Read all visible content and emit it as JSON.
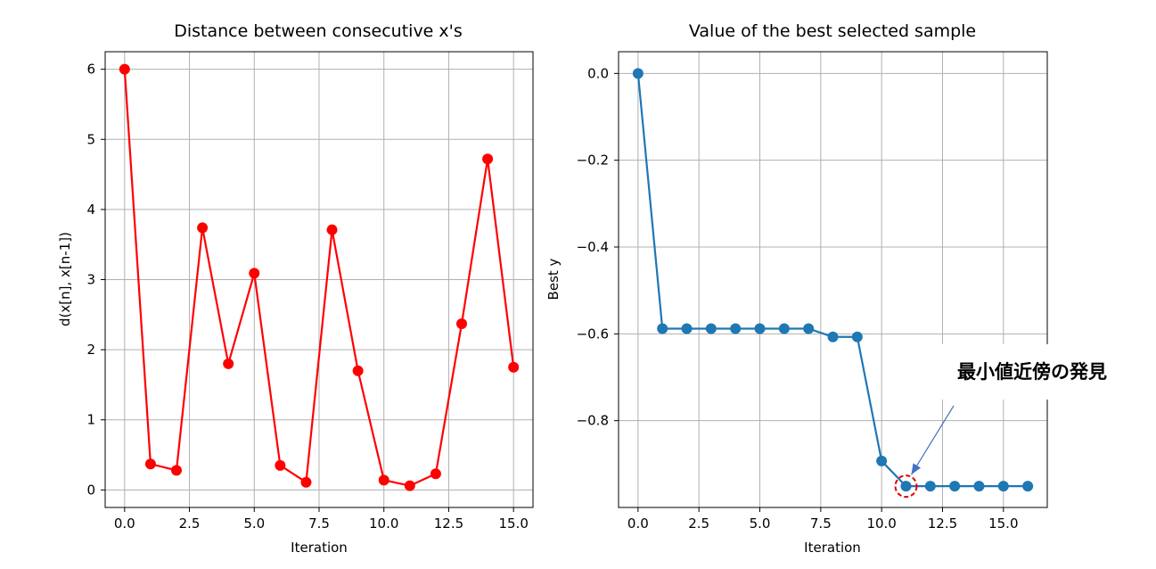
{
  "chart_data": [
    {
      "type": "line",
      "title": "Distance between consecutive x's",
      "xlabel": "Iteration",
      "ylabel": "d(x[n], x[n-1])",
      "xlim": [
        -0.75,
        15.75
      ],
      "ylim": [
        -0.25,
        6.25
      ],
      "xticks": [
        0.0,
        2.5,
        5.0,
        7.5,
        10.0,
        12.5,
        15.0
      ],
      "xtick_labels": [
        "0.0",
        "2.5",
        "5.0",
        "7.5",
        "10.0",
        "12.5",
        "15.0"
      ],
      "yticks": [
        0,
        1,
        2,
        3,
        4,
        5,
        6
      ],
      "ytick_labels": [
        "0",
        "1",
        "2",
        "3",
        "4",
        "5",
        "6"
      ],
      "grid": true,
      "color": "#ff0000",
      "x": [
        0,
        1,
        2,
        3,
        4,
        5,
        6,
        7,
        8,
        9,
        10,
        11,
        12,
        13,
        14,
        15
      ],
      "y": [
        6.0,
        0.37,
        0.28,
        3.74,
        1.8,
        3.09,
        0.35,
        0.11,
        3.71,
        1.7,
        0.14,
        0.06,
        0.23,
        2.37,
        4.72,
        1.75
      ]
    },
    {
      "type": "line",
      "title": "Value of the best selected sample",
      "xlabel": "Iteration",
      "ylabel": "Best y",
      "xlim": [
        -0.8,
        16.8
      ],
      "ylim": [
        -1.0,
        0.05
      ],
      "xticks": [
        0.0,
        2.5,
        5.0,
        7.5,
        10.0,
        12.5,
        15.0
      ],
      "xtick_labels": [
        "0.0",
        "2.5",
        "5.0",
        "7.5",
        "10.0",
        "12.5",
        "15.0"
      ],
      "yticks": [
        0.0,
        -0.2,
        -0.4,
        -0.6,
        -0.8
      ],
      "ytick_labels": [
        "0.0",
        "−0.2",
        "−0.4",
        "−0.6",
        "−0.8"
      ],
      "grid": true,
      "color": "#1f77b4",
      "x": [
        0,
        1,
        2,
        3,
        4,
        5,
        6,
        7,
        8,
        9,
        10,
        11,
        12,
        13,
        14,
        15,
        16
      ],
      "y": [
        0.0,
        -0.588,
        -0.588,
        -0.588,
        -0.588,
        -0.588,
        -0.588,
        -0.588,
        -0.607,
        -0.607,
        -0.893,
        -0.951,
        -0.951,
        -0.951,
        -0.951,
        -0.951,
        -0.951
      ],
      "annotation": {
        "text": "最小値近傍の発見",
        "target_x": 11,
        "target_y": -0.951,
        "circle_color": "#e00000",
        "arrow_color": "#4472c4"
      }
    }
  ]
}
